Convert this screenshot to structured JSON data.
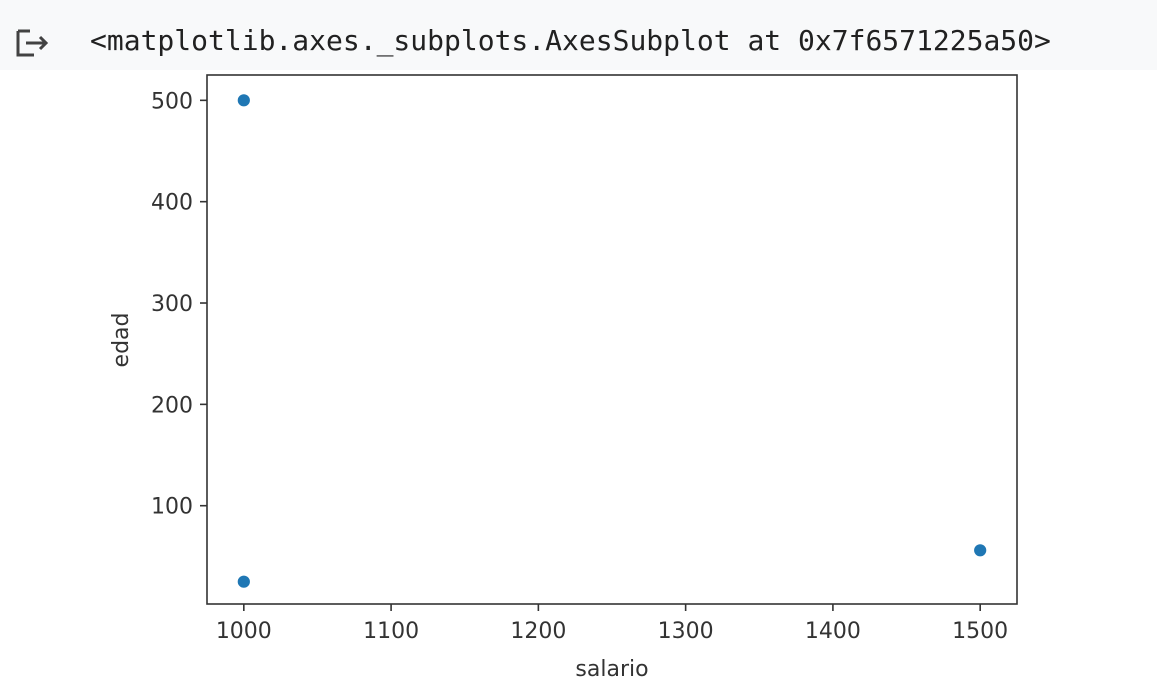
{
  "cell": {
    "output_icon": "output-arrow-icon",
    "repr_text": "<matplotlib.axes._subplots.AxesSubplot at 0x7f6571225a50>"
  },
  "chart_data": {
    "type": "scatter",
    "title": "",
    "xlabel": "salario",
    "ylabel": "edad",
    "xlim": [
      975,
      1525
    ],
    "ylim": [
      3,
      525
    ],
    "x_ticks": [
      1000,
      1100,
      1200,
      1300,
      1400,
      1500
    ],
    "y_ticks": [
      100,
      200,
      300,
      400,
      500
    ],
    "grid": false,
    "marker_color": "#1f77b4",
    "points": [
      {
        "x": 1000,
        "y": 500
      },
      {
        "x": 1000,
        "y": 25
      },
      {
        "x": 1500,
        "y": 56
      }
    ]
  }
}
